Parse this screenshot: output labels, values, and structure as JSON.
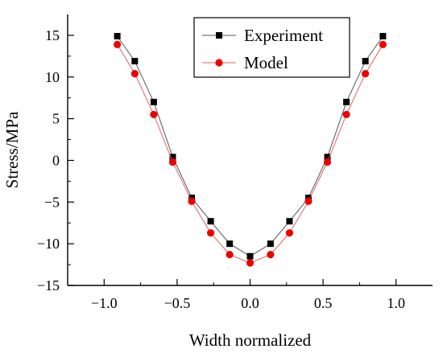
{
  "chart_data": {
    "type": "line",
    "xlabel": "Width normalized",
    "ylabel": "Stress/MPa",
    "xlim": [
      -1.25,
      1.25
    ],
    "ylim": [
      -15,
      17.5
    ],
    "xticks": [
      -1.0,
      -0.5,
      0.0,
      0.5,
      1.0
    ],
    "xtick_labels": [
      "−1.0",
      "−0.5",
      "0.0",
      "0.5",
      "1.0"
    ],
    "yticks": [
      -15,
      -10,
      -5,
      0,
      5,
      10,
      15
    ],
    "ytick_labels": [
      "−15",
      "−10",
      "−5",
      "0",
      "5",
      "10",
      "15"
    ],
    "grid": false,
    "legend_position": "top-right",
    "series": [
      {
        "name": "Experiment",
        "marker": "square",
        "color": "#000000",
        "line_color": "#555555",
        "x": [
          -0.91,
          -0.79,
          -0.66,
          -0.53,
          -0.4,
          -0.27,
          -0.14,
          0.0,
          0.14,
          0.27,
          0.4,
          0.53,
          0.66,
          0.79,
          0.91
        ],
        "y": [
          14.9,
          11.9,
          7.0,
          0.4,
          -4.5,
          -7.3,
          -10.0,
          -11.5,
          -10.0,
          -7.3,
          -4.5,
          0.4,
          7.0,
          11.9,
          14.9
        ]
      },
      {
        "name": "Model",
        "marker": "circle",
        "color": "#ee0000",
        "line_color": "#e06060",
        "x": [
          -0.91,
          -0.79,
          -0.66,
          -0.53,
          -0.4,
          -0.27,
          -0.14,
          0.0,
          0.14,
          0.27,
          0.4,
          0.53,
          0.66,
          0.79,
          0.91
        ],
        "y": [
          13.9,
          10.4,
          5.5,
          -0.2,
          -4.9,
          -8.7,
          -11.3,
          -12.3,
          -11.3,
          -8.7,
          -4.9,
          -0.2,
          5.5,
          10.4,
          13.9
        ]
      }
    ]
  }
}
